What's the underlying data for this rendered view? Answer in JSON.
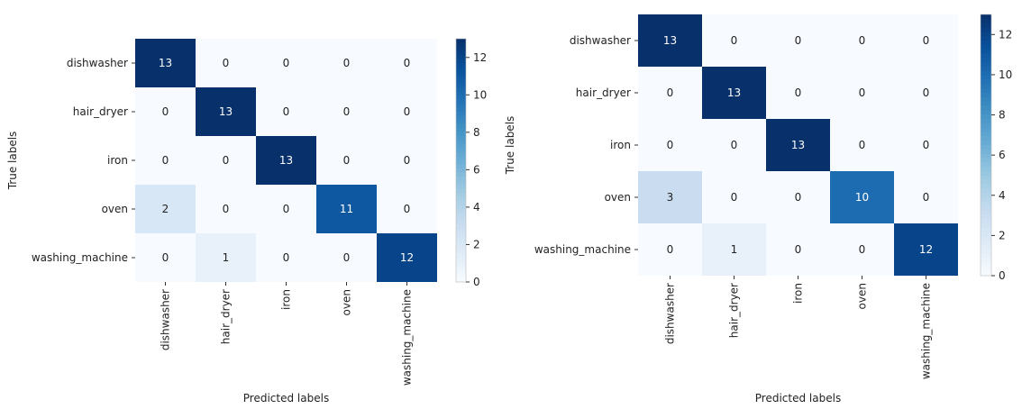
{
  "chart_data": [
    {
      "type": "heatmap",
      "title": "",
      "xlabel": "Predicted labels",
      "ylabel": "True labels",
      "x_categories": [
        "dishwasher",
        "hair_dryer",
        "iron",
        "oven",
        "washing_machine"
      ],
      "y_categories": [
        "dishwasher",
        "hair_dryer",
        "iron",
        "oven",
        "washing_machine"
      ],
      "values": [
        [
          13,
          0,
          0,
          0,
          0
        ],
        [
          0,
          13,
          0,
          0,
          0
        ],
        [
          0,
          0,
          13,
          0,
          0
        ],
        [
          2,
          0,
          0,
          11,
          0
        ],
        [
          0,
          1,
          0,
          0,
          12
        ]
      ],
      "colorbar": {
        "colormap": "Blues",
        "range": [
          0,
          13
        ],
        "ticks": [
          0,
          2,
          4,
          6,
          8,
          10,
          12
        ]
      },
      "grid": false
    },
    {
      "type": "heatmap",
      "title": "",
      "xlabel": "Predicted labels",
      "ylabel": "True labels",
      "x_categories": [
        "dishwasher",
        "hair_dryer",
        "iron",
        "oven",
        "washing_machine"
      ],
      "y_categories": [
        "dishwasher",
        "hair_dryer",
        "iron",
        "oven",
        "washing_machine"
      ],
      "values": [
        [
          13,
          0,
          0,
          0,
          0
        ],
        [
          0,
          13,
          0,
          0,
          0
        ],
        [
          0,
          0,
          13,
          0,
          0
        ],
        [
          3,
          0,
          0,
          10,
          0
        ],
        [
          0,
          1,
          0,
          0,
          12
        ]
      ],
      "colorbar": {
        "colormap": "Blues",
        "range": [
          0,
          13
        ],
        "ticks": [
          0,
          2,
          4,
          6,
          8,
          10,
          12
        ]
      },
      "grid": false
    }
  ]
}
